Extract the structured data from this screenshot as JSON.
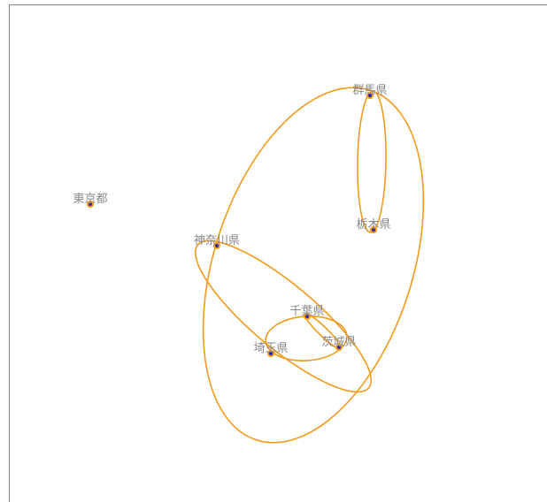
{
  "nodes": [
    {
      "label": "東京都"
    },
    {
      "label": "神奈川県"
    },
    {
      "label": "群馬県"
    },
    {
      "label": "栃木県"
    },
    {
      "label": "千葉県"
    },
    {
      "label": "茨城県"
    },
    {
      "label": "埼玉県"
    }
  ]
}
